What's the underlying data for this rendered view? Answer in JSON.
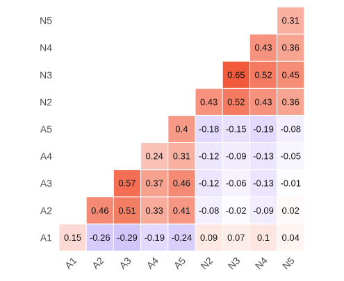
{
  "chart_data": {
    "type": "heatmap",
    "title": "",
    "xlabel": "",
    "ylabel": "",
    "x_labels": [
      "A1",
      "A2",
      "A3",
      "A4",
      "A5",
      "N2",
      "N3",
      "N4",
      "N5"
    ],
    "y_labels": [
      "A1",
      "A2",
      "A3",
      "A4",
      "A5",
      "N2",
      "N3",
      "N4",
      "N5"
    ],
    "layout": "upper-triangle",
    "color_scale": {
      "min": -0.65,
      "max": 0.65,
      "negative_color": "#9b7cf4",
      "zero_color": "#ffffff",
      "positive_color": "#f15a3a"
    },
    "cells": [
      {
        "x": "A1",
        "y": "A1",
        "value": 0.15
      },
      {
        "x": "A2",
        "y": "A1",
        "value": -0.26
      },
      {
        "x": "A2",
        "y": "A2",
        "value": 0.46
      },
      {
        "x": "A3",
        "y": "A1",
        "value": -0.29
      },
      {
        "x": "A3",
        "y": "A2",
        "value": 0.51
      },
      {
        "x": "A3",
        "y": "A3",
        "value": 0.57
      },
      {
        "x": "A4",
        "y": "A1",
        "value": -0.19
      },
      {
        "x": "A4",
        "y": "A2",
        "value": 0.33
      },
      {
        "x": "A4",
        "y": "A3",
        "value": 0.37
      },
      {
        "x": "A4",
        "y": "A4",
        "value": 0.24
      },
      {
        "x": "A5",
        "y": "A1",
        "value": -0.24
      },
      {
        "x": "A5",
        "y": "A2",
        "value": 0.41
      },
      {
        "x": "A5",
        "y": "A3",
        "value": 0.46
      },
      {
        "x": "A5",
        "y": "A4",
        "value": 0.31
      },
      {
        "x": "A5",
        "y": "A5",
        "value": 0.4
      },
      {
        "x": "N2",
        "y": "A1",
        "value": 0.09
      },
      {
        "x": "N2",
        "y": "A2",
        "value": -0.08
      },
      {
        "x": "N2",
        "y": "A3",
        "value": -0.12
      },
      {
        "x": "N2",
        "y": "A4",
        "value": -0.12
      },
      {
        "x": "N2",
        "y": "A5",
        "value": -0.18
      },
      {
        "x": "N2",
        "y": "N2",
        "value": 0.43
      },
      {
        "x": "N3",
        "y": "A1",
        "value": 0.07
      },
      {
        "x": "N3",
        "y": "A2",
        "value": -0.02
      },
      {
        "x": "N3",
        "y": "A3",
        "value": -0.06
      },
      {
        "x": "N3",
        "y": "A4",
        "value": -0.09
      },
      {
        "x": "N3",
        "y": "A5",
        "value": -0.15
      },
      {
        "x": "N3",
        "y": "N2",
        "value": 0.52
      },
      {
        "x": "N3",
        "y": "N3",
        "value": 0.65
      },
      {
        "x": "N4",
        "y": "A1",
        "value": 0.1
      },
      {
        "x": "N4",
        "y": "A2",
        "value": -0.09
      },
      {
        "x": "N4",
        "y": "A3",
        "value": -0.13
      },
      {
        "x": "N4",
        "y": "A4",
        "value": -0.13
      },
      {
        "x": "N4",
        "y": "A5",
        "value": -0.19
      },
      {
        "x": "N4",
        "y": "N2",
        "value": 0.43
      },
      {
        "x": "N4",
        "y": "N3",
        "value": 0.52
      },
      {
        "x": "N4",
        "y": "N4",
        "value": 0.43
      },
      {
        "x": "N5",
        "y": "A1",
        "value": 0.04
      },
      {
        "x": "N5",
        "y": "A2",
        "value": 0.02
      },
      {
        "x": "N5",
        "y": "A3",
        "value": -0.01
      },
      {
        "x": "N5",
        "y": "A4",
        "value": -0.05
      },
      {
        "x": "N5",
        "y": "A5",
        "value": -0.08
      },
      {
        "x": "N5",
        "y": "N2",
        "value": 0.36
      },
      {
        "x": "N5",
        "y": "N3",
        "value": 0.45
      },
      {
        "x": "N5",
        "y": "N4",
        "value": 0.36
      },
      {
        "x": "N5",
        "y": "N5",
        "value": 0.31
      }
    ]
  }
}
